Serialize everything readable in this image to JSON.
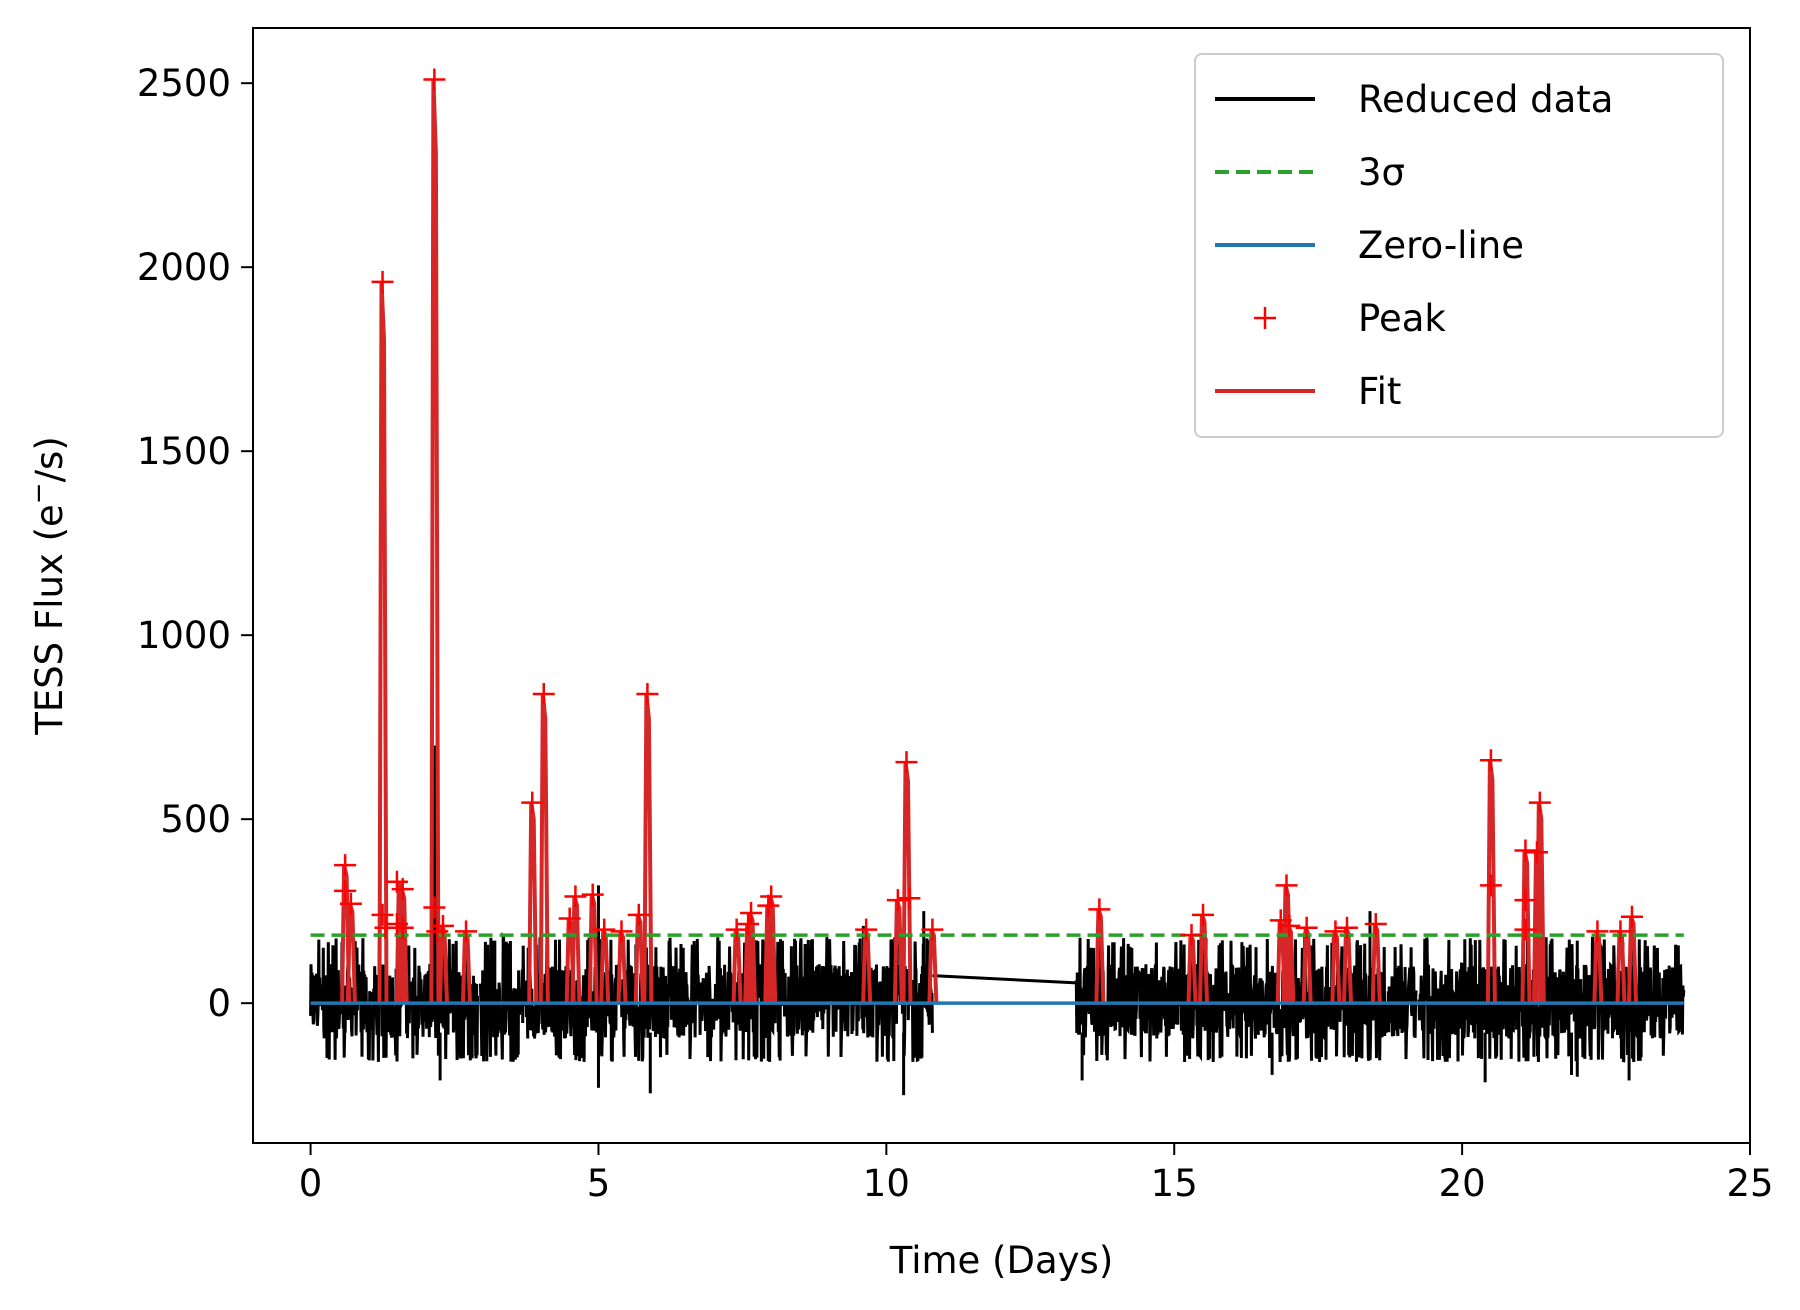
{
  "chart_data": {
    "type": "line",
    "xlabel": "Time (Days)",
    "ylabel": "TESS Flux (e",
    "ylabel_sup": "−",
    "ylabel_tail": "/s)",
    "xlim": [
      -1,
      25
    ],
    "ylim": [
      -380,
      2650
    ],
    "xticks": [
      0,
      5,
      10,
      15,
      20,
      25
    ],
    "yticks": [
      0,
      500,
      1000,
      1500,
      2000,
      2500
    ],
    "grid": false,
    "legend_position": "top-right",
    "colors": {
      "reduced": "#000000",
      "sigma": "#2ca02c",
      "zero": "#1f77b4",
      "peak": "#ff0000",
      "fit": "#d62728"
    },
    "series": [
      {
        "name": "Reduced data",
        "style": "solid",
        "color": "#000000",
        "segments": [
          {
            "x_start": 0.0,
            "x_end": 2.9,
            "low": -140,
            "high": 150
          },
          {
            "x_start": 2.95,
            "x_end": 10.8,
            "low": -140,
            "high": 150
          },
          {
            "x_start": 13.3,
            "x_end": 19.2,
            "low": -140,
            "high": 150
          },
          {
            "x_start": 19.25,
            "x_end": 23.85,
            "low": -140,
            "high": 150
          }
        ],
        "gap_line": [
          [
            10.8,
            75
          ],
          [
            13.3,
            55
          ]
        ],
        "extreme_lows": [
          [
            2.25,
            -210
          ],
          [
            5.0,
            -230
          ],
          [
            5.9,
            -245
          ],
          [
            10.3,
            -250
          ],
          [
            13.4,
            -210
          ],
          [
            20.4,
            -215
          ],
          [
            22.0,
            -200
          ],
          [
            22.9,
            -210
          ],
          [
            19.7,
            -150
          ],
          [
            16.7,
            -195
          ],
          [
            21.9,
            -195
          ]
        ]
      },
      {
        "name": "3σ",
        "style": "dashed",
        "color": "#2ca02c",
        "y": 185,
        "x_range": [
          0,
          23.85
        ]
      },
      {
        "name": "Zero-line",
        "style": "solid",
        "color": "#1f77b4",
        "y": 0,
        "x_range": [
          0,
          23.85
        ]
      },
      {
        "name": "Peak",
        "style": "marker-plus",
        "color": "#ff0000",
        "points": [
          [
            0.6,
            375
          ],
          [
            0.6,
            305
          ],
          [
            0.7,
            270
          ],
          [
            1.25,
            1960
          ],
          [
            1.25,
            240
          ],
          [
            1.3,
            205
          ],
          [
            1.5,
            330
          ],
          [
            1.6,
            310
          ],
          [
            1.5,
            215
          ],
          [
            1.6,
            205
          ],
          [
            2.15,
            2510
          ],
          [
            2.15,
            260
          ],
          [
            2.3,
            210
          ],
          [
            2.2,
            195
          ],
          [
            2.7,
            195
          ],
          [
            3.85,
            545
          ],
          [
            4.05,
            840
          ],
          [
            4.5,
            230
          ],
          [
            4.6,
            290
          ],
          [
            4.9,
            295
          ],
          [
            5.1,
            200
          ],
          [
            5.4,
            195
          ],
          [
            5.7,
            240
          ],
          [
            5.85,
            840
          ],
          [
            7.4,
            200
          ],
          [
            7.6,
            215
          ],
          [
            7.65,
            245
          ],
          [
            7.95,
            265
          ],
          [
            8.0,
            290
          ],
          [
            9.65,
            200
          ],
          [
            10.2,
            280
          ],
          [
            10.35,
            655
          ],
          [
            10.4,
            285
          ],
          [
            10.8,
            200
          ],
          [
            13.7,
            255
          ],
          [
            15.3,
            185
          ],
          [
            15.5,
            240
          ],
          [
            16.85,
            225
          ],
          [
            16.95,
            320
          ],
          [
            17.0,
            210
          ],
          [
            17.3,
            205
          ],
          [
            17.8,
            195
          ],
          [
            18.0,
            205
          ],
          [
            18.5,
            215
          ],
          [
            20.5,
            660
          ],
          [
            20.5,
            320
          ],
          [
            21.1,
            415
          ],
          [
            21.1,
            280
          ],
          [
            21.1,
            200
          ],
          [
            21.3,
            410
          ],
          [
            21.35,
            545
          ],
          [
            22.35,
            195
          ],
          [
            22.75,
            195
          ],
          [
            22.95,
            235
          ]
        ]
      },
      {
        "name": "Fit",
        "style": "solid",
        "color": "#d62728",
        "spikes": [
          [
            0.6,
            375
          ],
          [
            0.7,
            270
          ],
          [
            1.25,
            1960
          ],
          [
            1.55,
            330
          ],
          [
            1.6,
            310
          ],
          [
            2.15,
            2510
          ],
          [
            2.3,
            210
          ],
          [
            2.7,
            195
          ],
          [
            3.85,
            545
          ],
          [
            4.05,
            840
          ],
          [
            4.5,
            230
          ],
          [
            4.6,
            290
          ],
          [
            4.9,
            295
          ],
          [
            5.1,
            200
          ],
          [
            5.4,
            195
          ],
          [
            5.7,
            240
          ],
          [
            5.85,
            840
          ],
          [
            7.4,
            200
          ],
          [
            7.6,
            215
          ],
          [
            7.65,
            245
          ],
          [
            7.95,
            265
          ],
          [
            8.0,
            290
          ],
          [
            9.65,
            200
          ],
          [
            10.2,
            280
          ],
          [
            10.35,
            655
          ],
          [
            10.8,
            200
          ],
          [
            13.7,
            255
          ],
          [
            15.3,
            185
          ],
          [
            15.5,
            240
          ],
          [
            16.85,
            225
          ],
          [
            16.95,
            320
          ],
          [
            17.0,
            210
          ],
          [
            17.3,
            205
          ],
          [
            17.8,
            195
          ],
          [
            18.0,
            205
          ],
          [
            18.5,
            215
          ],
          [
            20.5,
            660
          ],
          [
            21.1,
            415
          ],
          [
            21.3,
            410
          ],
          [
            21.35,
            545
          ],
          [
            22.35,
            195
          ],
          [
            22.75,
            195
          ],
          [
            22.95,
            235
          ]
        ]
      }
    ],
    "raw_spikes": [
      [
        2.2,
        1000
      ],
      [
        2.15,
        700
      ],
      [
        5.0,
        320
      ],
      [
        9.6,
        210
      ],
      [
        10.65,
        250
      ],
      [
        13.6,
        150
      ],
      [
        18.4,
        250
      ],
      [
        22.0,
        170
      ],
      [
        3.2,
        170
      ]
    ],
    "legend": [
      {
        "label": "Reduced data",
        "kind": "line",
        "color": "#000000"
      },
      {
        "label": "3σ",
        "kind": "dashed",
        "color": "#2ca02c"
      },
      {
        "label": "Zero-line",
        "kind": "line",
        "color": "#1f77b4"
      },
      {
        "label": "Peak",
        "kind": "plus",
        "color": "#ff0000"
      },
      {
        "label": "Fit",
        "kind": "line",
        "color": "#d62728"
      }
    ]
  }
}
